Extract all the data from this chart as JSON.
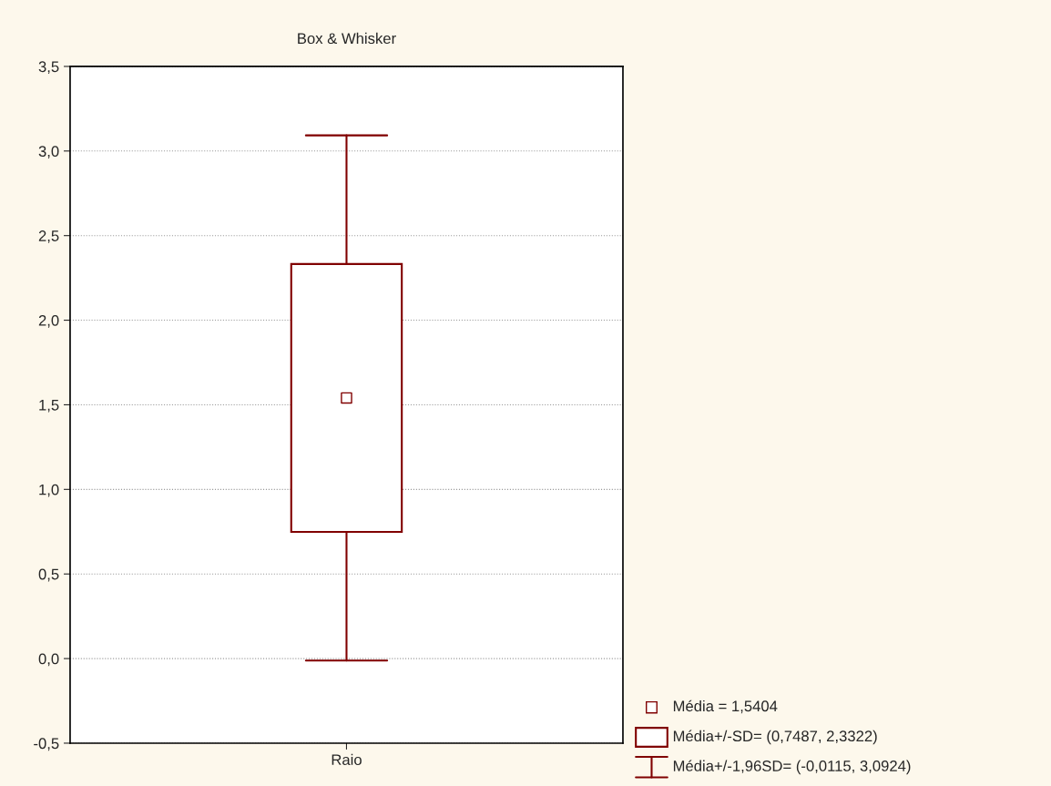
{
  "chart_data": {
    "type": "box",
    "title": "Box & Whisker",
    "categories": [
      "Raio"
    ],
    "boxes": [
      {
        "low": -0.0115,
        "q1": 0.7487,
        "q3": 2.3322,
        "high": 3.0924,
        "mean": 1.5404
      }
    ],
    "color": "#800000",
    "ylim": [
      -0.5,
      3.5
    ],
    "yticks": [
      {
        "value": -0.5,
        "label": "-0,5"
      },
      {
        "value": 0,
        "label": "0,0"
      },
      {
        "value": 0.5,
        "label": "0,5"
      },
      {
        "value": 1,
        "label": "1,0"
      },
      {
        "value": 1.5,
        "label": "1,5"
      },
      {
        "value": 2,
        "label": "2,0"
      },
      {
        "value": 2.5,
        "label": "2,5"
      },
      {
        "value": 3,
        "label": "3,0"
      },
      {
        "value": 3.5,
        "label": "3,5"
      }
    ],
    "grid": "y",
    "annotations": [
      "Média = 1,5404",
      "Média+/-SD= (0,7487, 2,3322)",
      "Média+/-1,96SD= (-0,0115, 3,0924)"
    ]
  }
}
